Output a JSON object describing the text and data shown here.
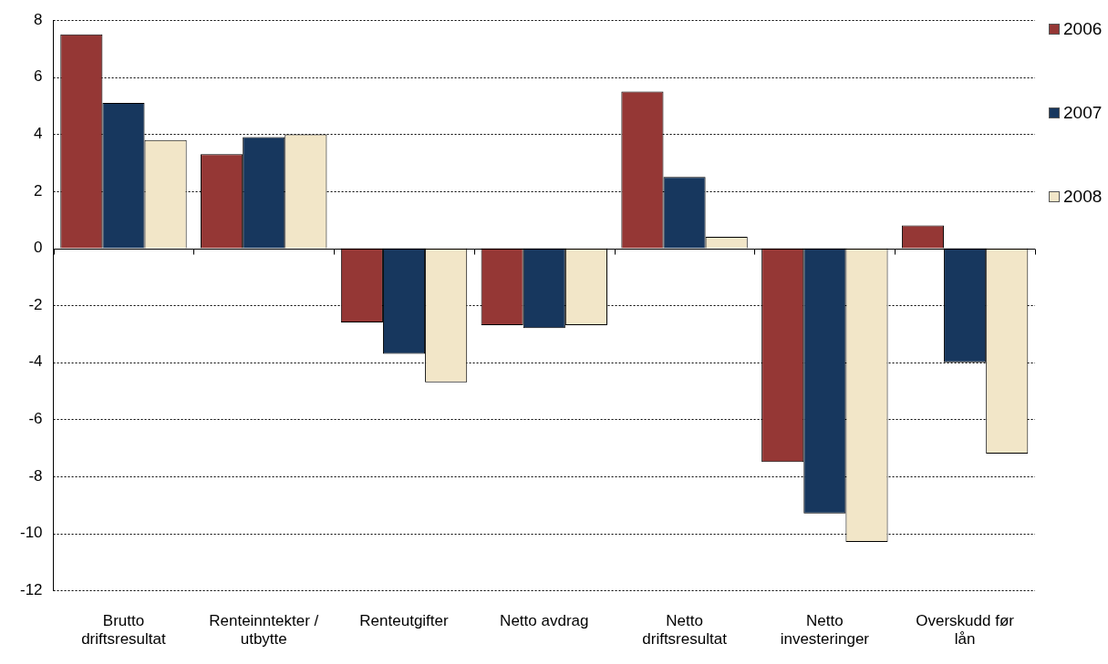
{
  "chart_data": {
    "type": "bar",
    "categories": [
      "Brutto driftsresultat",
      "Renteinntekter / utbytte",
      "Renteutgifter",
      "Netto avdrag",
      "Netto driftsresultat",
      "Netto investeringer",
      "Overskudd før lån"
    ],
    "series": [
      {
        "name": "2006",
        "color": "#953735",
        "values": [
          7.5,
          3.3,
          -2.6,
          -2.7,
          5.5,
          -7.5,
          0.8
        ]
      },
      {
        "name": "2007",
        "color": "#17375e",
        "values": [
          5.1,
          3.9,
          -3.7,
          -2.8,
          2.5,
          -9.3,
          -4.0
        ]
      },
      {
        "name": "2008",
        "color": "#f2e6c8",
        "values": [
          3.8,
          4.0,
          -4.7,
          -2.7,
          0.4,
          -10.3,
          -7.2
        ]
      }
    ],
    "ylim": [
      -12,
      8
    ],
    "yticks": [
      -12,
      -10,
      -8,
      -6,
      -4,
      -2,
      0,
      2,
      4,
      6,
      8
    ],
    "grid": "y",
    "legend": "right"
  }
}
